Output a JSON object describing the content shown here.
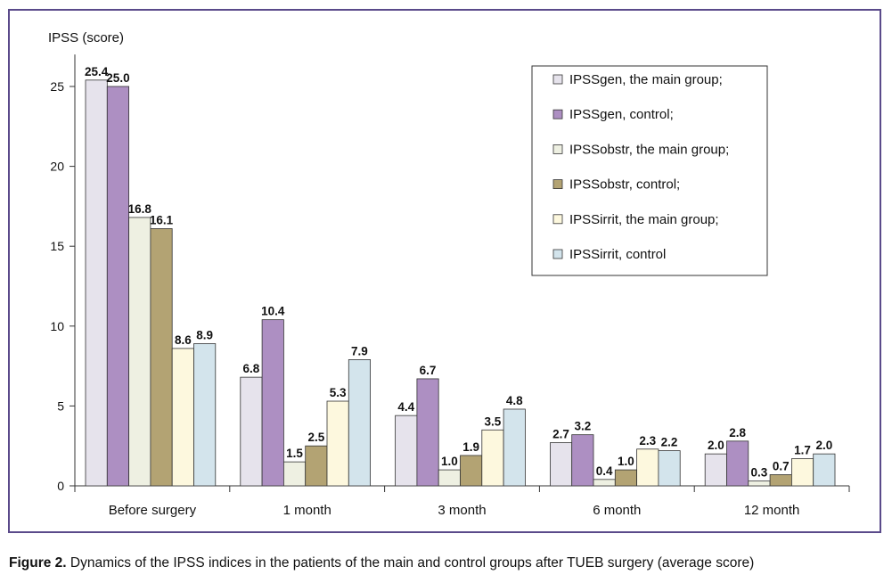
{
  "caption": {
    "label": "Figure 2.",
    "text": " Dynamics of the IPSS indices in the patients of the main and control groups after TUEB surgery (average score)"
  },
  "chart_data": {
    "type": "bar",
    "ylabel": "IPSS (score)",
    "ylim": [
      0,
      27
    ],
    "yticks": [
      0,
      5,
      10,
      15,
      20,
      25
    ],
    "categories": [
      "Before surgery",
      "1 month",
      "3 month",
      "6 month",
      "12 month"
    ],
    "series": [
      {
        "name": "IPSSgen, the main group;",
        "color": "#e6e3ec",
        "values": [
          25.4,
          6.8,
          4.4,
          2.7,
          2.0
        ]
      },
      {
        "name": "IPSSgen, control;",
        "color": "#ad8fc2",
        "values": [
          25.0,
          10.4,
          6.7,
          3.2,
          2.8
        ]
      },
      {
        "name": "IPSSobstr, the main group;",
        "color": "#eef0e2",
        "values": [
          16.8,
          1.5,
          1.0,
          0.4,
          0.3
        ]
      },
      {
        "name": "IPSSobstr, control;",
        "color": "#b3a373",
        "values": [
          16.1,
          2.5,
          1.9,
          1.0,
          0.7
        ]
      },
      {
        "name": "IPSSirrit, the main group;",
        "color": "#fdf8de",
        "values": [
          8.6,
          5.3,
          3.5,
          2.3,
          1.7
        ]
      },
      {
        "name": "IPSSirrit, control",
        "color": "#d3e4ec",
        "values": [
          8.9,
          7.9,
          4.8,
          2.2,
          2.0
        ]
      }
    ],
    "legend": "top-right",
    "grid": false
  }
}
